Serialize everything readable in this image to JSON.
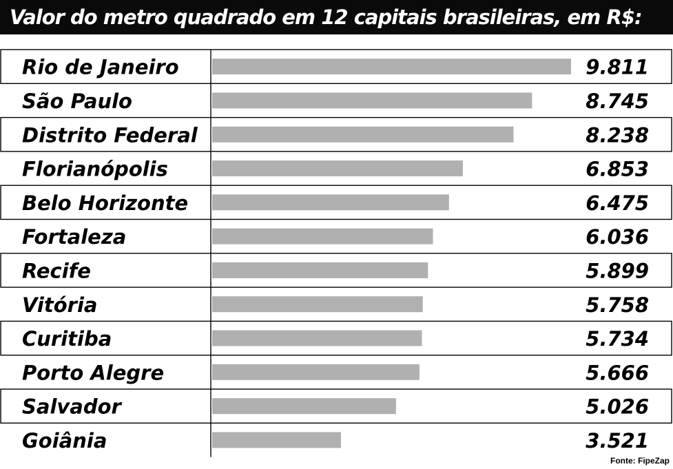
{
  "chart_data": {
    "type": "bar",
    "orientation": "horizontal",
    "title": "Valor do metro quadrado em 12 capitais brasileiras, em R$:",
    "categories": [
      "Rio de Janeiro",
      "São Paulo",
      "Distrito Federal",
      "Florianópolis",
      "Belo Horizonte",
      "Fortaleza",
      "Recife",
      "Vitória",
      "Curitiba",
      "Porto Alegre",
      "Salvador",
      "Goiânia"
    ],
    "values": [
      9811,
      8745,
      8238,
      6853,
      6475,
      6036,
      5899,
      5758,
      5734,
      5666,
      5026,
      3521
    ],
    "value_labels": [
      "9.811",
      "8.745",
      "8.238",
      "6.853",
      "6.475",
      "6.036",
      "5.899",
      "5.758",
      "5.734",
      "5.666",
      "5.026",
      "3.521"
    ],
    "bar_color": "#b0b0b0",
    "xlim": [
      0,
      9811
    ],
    "grid": false,
    "source": "Fonte: FipeZap"
  }
}
